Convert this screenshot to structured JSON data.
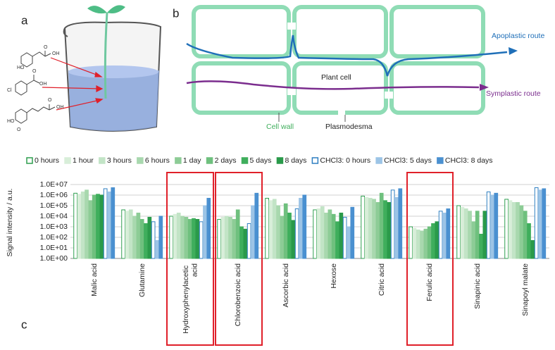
{
  "panel_labels": [
    "a",
    "b",
    "c"
  ],
  "panel_a": {
    "atoms": [
      "HO",
      "OH",
      "O",
      "O",
      "OH",
      "Cl",
      "HO",
      "O",
      "O",
      "OH"
    ]
  },
  "panel_b": {
    "apoplastic": "Apoplastic route",
    "plant_cell": "Plant cell",
    "symplastic": "Symplastic route",
    "cell_wall": "Cell wall",
    "plasmodesma": "Plasmodesma"
  },
  "chart_data": {
    "type": "bar",
    "ylabel": "Signal intensity / a.u.",
    "log_scale": true,
    "grid": true,
    "legend": "top",
    "ylim": [
      1,
      10000000
    ],
    "yticks": [
      {
        "value": 1,
        "label": "1.0E+00"
      },
      {
        "value": 10,
        "label": "1.0E+01"
      },
      {
        "value": 100,
        "label": "1.0E+02"
      },
      {
        "value": 1000,
        "label": "1.0E+03"
      },
      {
        "value": 10000,
        "label": "1.0E+04"
      },
      {
        "value": 100000,
        "label": "1.0E+05"
      },
      {
        "value": 1000000,
        "label": "1.0E+06"
      },
      {
        "value": 10000000,
        "label": "1.0E+07"
      }
    ],
    "categories": [
      "Malic acid",
      "Glutamine",
      "Hydroxyphenylacetic acid",
      "Chlorobenzoic acid",
      "Ascorbic acid",
      "Hexose",
      "Citric acid",
      "Ferulic acid",
      "Sinapinic acid",
      "Sinapoyl malate"
    ],
    "series": [
      {
        "name": "0 hours",
        "color": "#ffffff",
        "border": "#2e9e4f",
        "values": [
          1500000,
          40000,
          10000,
          5000,
          500000,
          40000,
          800000,
          1000,
          100000,
          400000
        ]
      },
      {
        "name": "1 hour",
        "color": "#d8eed9",
        "border": "#d8eed9",
        "values": [
          1200000,
          30000,
          15000,
          8000,
          300000,
          50000,
          600000,
          700,
          70000,
          300000
        ]
      },
      {
        "name": "3 hours",
        "color": "#c2e4c6",
        "border": "#c2e4c6",
        "values": [
          2000000,
          40000,
          20000,
          10000,
          400000,
          80000,
          500000,
          500,
          50000,
          200000
        ]
      },
      {
        "name": "6 hours",
        "color": "#a8d8ae",
        "border": "#a8d8ae",
        "values": [
          3000000,
          10000,
          10000,
          8000,
          100000,
          20000,
          400000,
          400,
          30000,
          200000
        ]
      },
      {
        "name": "1 day",
        "color": "#8dcc96",
        "border": "#8dcc96",
        "values": [
          300000,
          20000,
          8000,
          5000,
          10000,
          40000,
          200000,
          600,
          3000,
          100000
        ]
      },
      {
        "name": "2 days",
        "color": "#6fc07e",
        "border": "#6fc07e",
        "values": [
          1000000,
          5000,
          5000,
          40000,
          150000,
          15000,
          1500000,
          1000,
          30000,
          30000
        ]
      },
      {
        "name": "5 days",
        "color": "#3fae5c",
        "border": "#3fae5c",
        "values": [
          1200000,
          2000,
          6000,
          1000,
          20000,
          3000,
          300000,
          2000,
          200,
          2000
        ]
      },
      {
        "name": "8 days",
        "color": "#2a9a4a",
        "border": "#2a9a4a",
        "values": [
          1000000,
          8000,
          5000,
          600,
          4000,
          20000,
          200000,
          3000,
          30000,
          50
        ]
      },
      {
        "name": "CHCl3: 0 hours",
        "color": "#ffffff",
        "border": "#2f7fc1",
        "values": [
          4000000,
          3000,
          3000,
          2000,
          50000,
          8000,
          3000000,
          30000,
          2000000,
          5000000
        ]
      },
      {
        "name": "CHCl3: 5 days",
        "color": "#9cc4e6",
        "border": "#9cc4e6",
        "values": [
          2000000,
          50,
          100000,
          100000,
          500000,
          1000,
          600000,
          20000,
          1000000,
          3000000
        ]
      },
      {
        "name": "CHCl3: 8 days",
        "color": "#4a90d0",
        "border": "#4a90d0",
        "values": [
          5000000,
          10000,
          500000,
          1500000,
          1000000,
          70000,
          4000000,
          50000,
          1500000,
          4000000
        ]
      }
    ]
  }
}
